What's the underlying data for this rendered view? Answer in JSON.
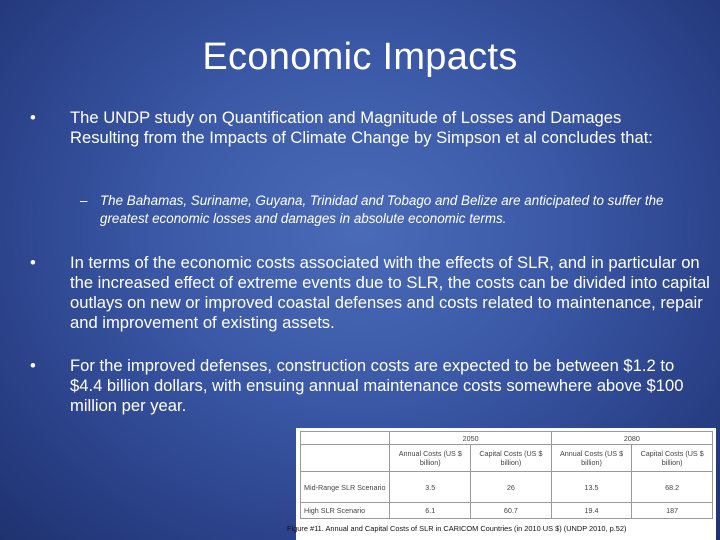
{
  "slide": {
    "title": "Economic Impacts",
    "bullets": [
      "The UNDP study on Quantification and Magnitude of Losses and Damages Resulting from the Impacts of Climate Change by Simpson et al concludes that:",
      "In terms of the economic costs associated with the effects of SLR, and in particular on the increased effect of extreme events due to SLR, the costs can be divided into capital outlays on new or improved coastal defenses and costs related to maintenance, repair and improvement of existing assets.",
      "For the improved defenses, construction costs are expected to be between $1.2 to $4.4 billion dollars, with ensuing annual maintenance costs somewhere above $100 million per year."
    ],
    "sub_bullet": "The Bahamas, Suriname, Guyana, Trinidad and Tobago and Belize are anticipated to suffer the greatest economic losses and damages in absolute economic terms.",
    "bullet_char": "•",
    "dash_char": "–"
  },
  "table": {
    "years": [
      "2050",
      "2080"
    ],
    "col_headers": [
      "Annual Costs (US $ billion)",
      "Capital Costs (US $ billion)",
      "Annual Costs (US $ billion)",
      "Capital Costs (US $ billion)"
    ],
    "rows": [
      {
        "label": "Mid-Range SLR Scenario",
        "values": [
          "3.5",
          "26",
          "13.5",
          "68.2"
        ]
      },
      {
        "label": "High SLR Scenario",
        "values": [
          "6.1",
          "60.7",
          "19.4",
          "187"
        ]
      }
    ],
    "caption": "Figure #11. Annual and Capital Costs of SLR in CARICOM Countries (in 2010 US $) (UNDP 2010, p.52)"
  }
}
